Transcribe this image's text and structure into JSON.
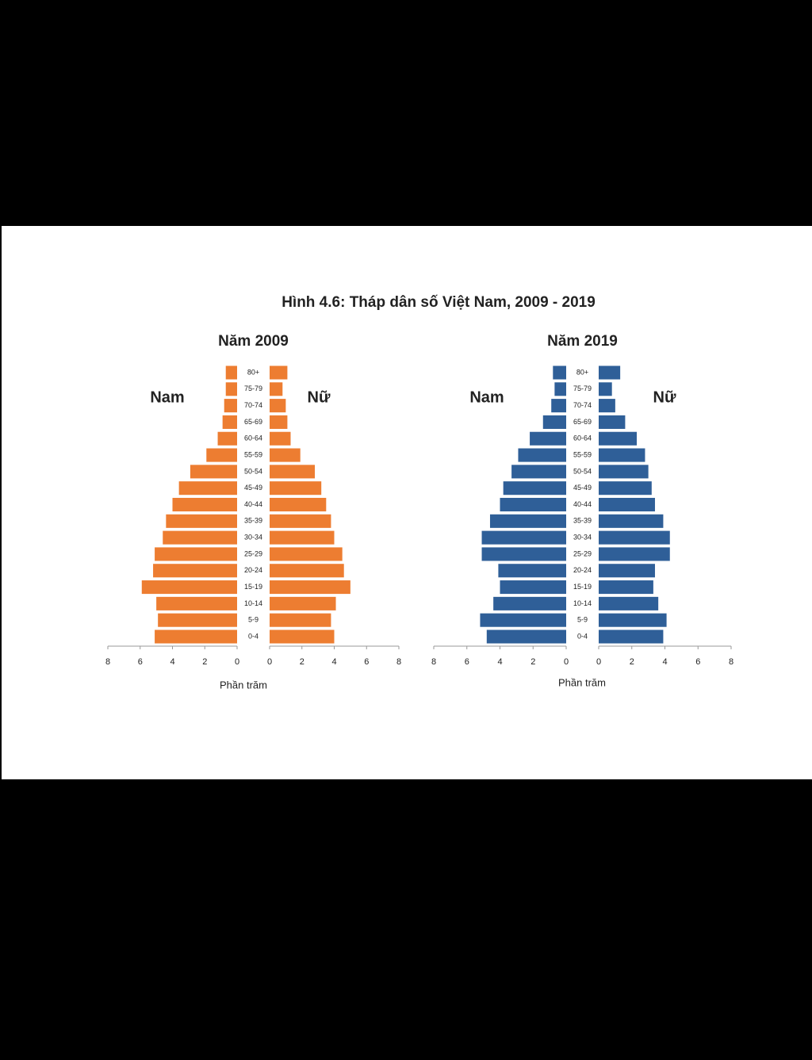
{
  "title": "Hình 4.6: Tháp dân số Việt Nam, 2009 - 2019",
  "chart_data": [
    {
      "type": "pyramid",
      "title": "Năm 2009",
      "xlabel": "Phần trăm",
      "categories": [
        "0-4",
        "5-9",
        "10-14",
        "15-19",
        "20-24",
        "25-29",
        "30-34",
        "35-39",
        "40-44",
        "45-49",
        "50-54",
        "55-59",
        "60-64",
        "65-69",
        "70-74",
        "75-79",
        "80+"
      ],
      "series": [
        {
          "name": "Nam",
          "color": "#ed7d31",
          "values": [
            5.1,
            4.9,
            5.0,
            5.9,
            5.2,
            5.1,
            4.6,
            4.4,
            4.0,
            3.6,
            2.9,
            1.9,
            1.2,
            0.9,
            0.8,
            0.7,
            0.7
          ]
        },
        {
          "name": "Nữ",
          "color": "#ed7d31",
          "values": [
            4.0,
            3.8,
            4.1,
            5.0,
            4.6,
            4.5,
            4.0,
            3.8,
            3.5,
            3.2,
            2.8,
            1.9,
            1.3,
            1.1,
            1.0,
            0.8,
            1.1
          ]
        }
      ],
      "xlim": [
        0,
        8
      ],
      "xticks": [
        0,
        2,
        4,
        6,
        8
      ]
    },
    {
      "type": "pyramid",
      "title": "Năm 2019",
      "xlabel": "Phần trăm",
      "categories": [
        "0-4",
        "5-9",
        "10-14",
        "15-19",
        "20-24",
        "25-29",
        "30-34",
        "35-39",
        "40-44",
        "45-49",
        "50-54",
        "55-59",
        "60-64",
        "65-69",
        "70-74",
        "75-79",
        "80+"
      ],
      "series": [
        {
          "name": "Nam",
          "color": "#2f5f98",
          "values": [
            4.8,
            5.2,
            4.4,
            4.0,
            4.1,
            5.1,
            5.1,
            4.6,
            4.0,
            3.8,
            3.3,
            2.9,
            2.2,
            1.4,
            0.9,
            0.7,
            0.8
          ]
        },
        {
          "name": "Nữ",
          "color": "#2f5f98",
          "values": [
            3.9,
            4.1,
            3.6,
            3.3,
            3.4,
            4.3,
            4.3,
            3.9,
            3.4,
            3.2,
            3.0,
            2.8,
            2.3,
            1.6,
            1.0,
            0.8,
            1.3
          ]
        }
      ],
      "xlim": [
        0,
        8
      ],
      "xticks": [
        0,
        2,
        4,
        6,
        8
      ]
    }
  ]
}
